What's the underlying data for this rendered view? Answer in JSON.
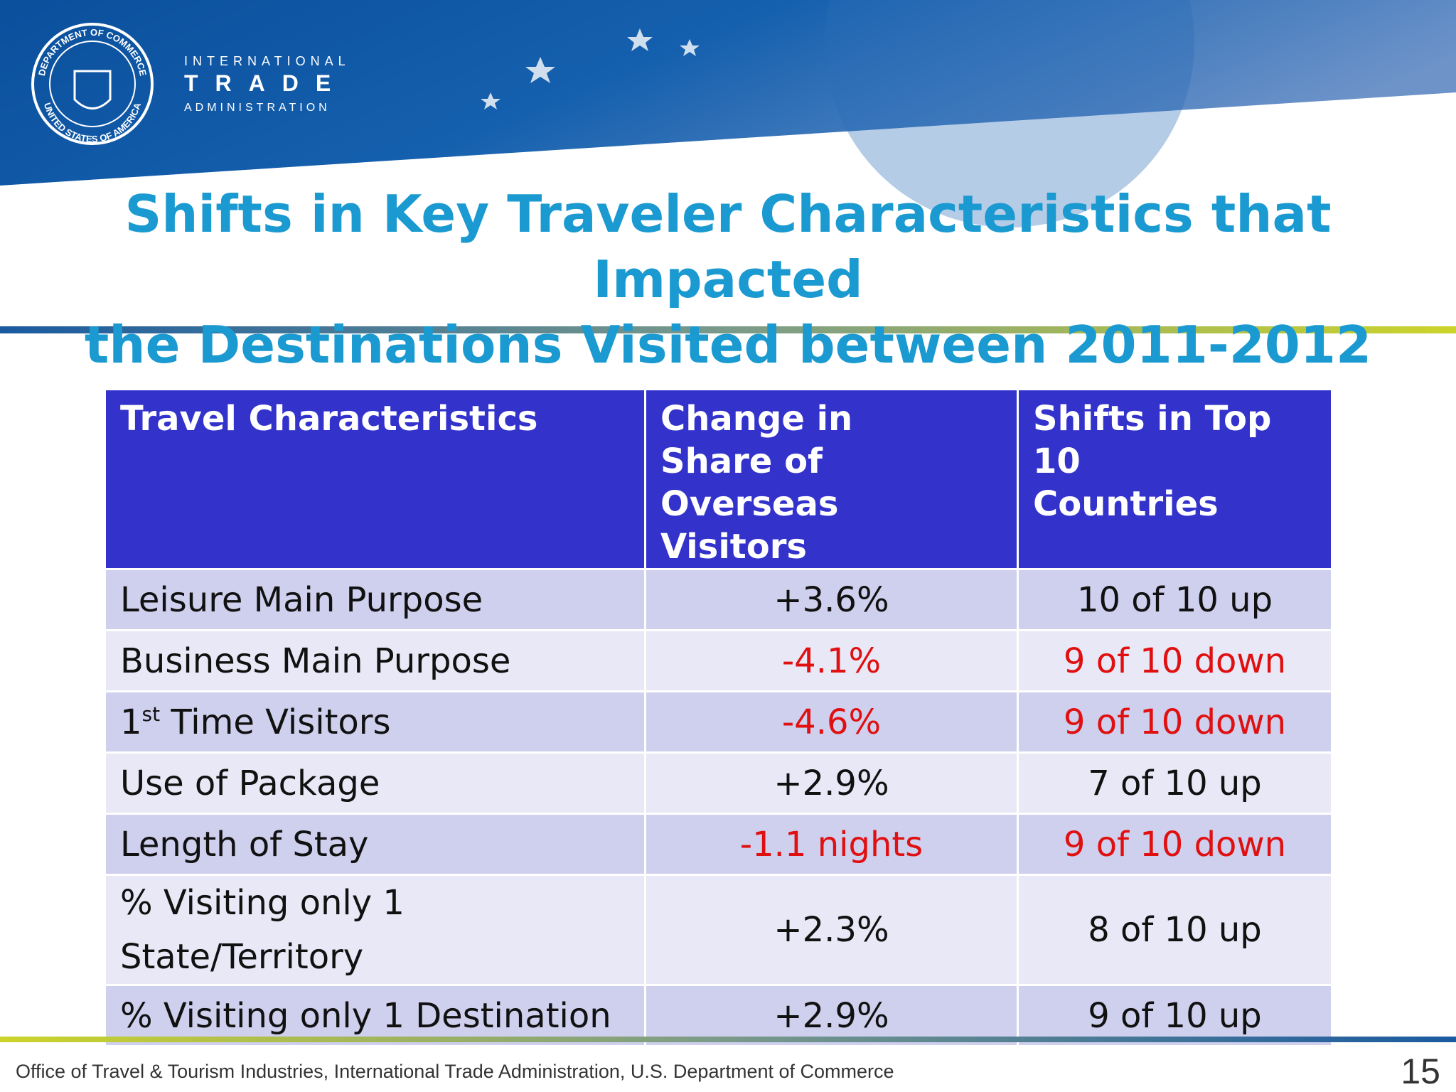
{
  "logo": {
    "seal_top": "DEPARTMENT OF COMMERCE",
    "seal_bottom": "UNITED STATES OF AMERICA",
    "line1": "INTERNATIONAL",
    "line2": "TRADE",
    "line3": "ADMINISTRATION"
  },
  "title": {
    "line1": "Shifts in Key Traveler Characteristics that Impacted",
    "line2": "the Destinations Visited between 2011-2012"
  },
  "table": {
    "header": [
      "Travel Characteristics",
      "Change in Share of Overseas Visitors",
      "Shifts in Top 10 Countries"
    ],
    "rows": [
      [
        "Leisure Main Purpose",
        "+3.6%",
        "10 of 10 up"
      ],
      [
        "Business Main Purpose",
        "-4.1%",
        "9 of 10 down"
      ],
      [
        {
          "base": "1",
          "sup": "st",
          "rest": " Time Visitors"
        },
        "-4.6%",
        "9 of 10 down"
      ],
      [
        "Use of Package",
        "+2.9%",
        "7 of 10 up"
      ],
      [
        "Length of Stay",
        "-1.1 nights",
        "9 of 10 down"
      ],
      [
        "% Visiting only 1 State/Territory",
        "+2.3%",
        "8 of 10 up"
      ],
      [
        "% Visiting only 1 Destination",
        "+2.9%",
        "9 of 10 up"
      ]
    ]
  },
  "footer": {
    "text": "Office of Travel & Tourism Industries, International Trade Administration, U.S. Department of Commerce",
    "page": "15"
  }
}
